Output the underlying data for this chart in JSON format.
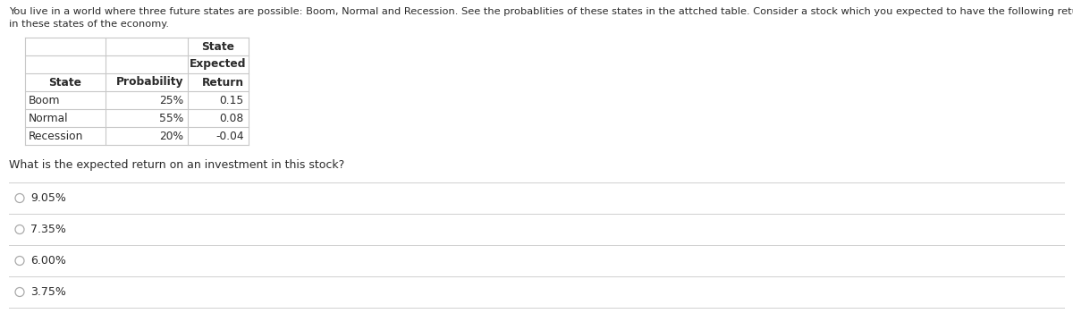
{
  "intro_line1": "You live in a world where three future states are possible: Boom, Normal and Recession. See the probablities of these states in the attched table. Consider a stock which you expected to have the following returns",
  "intro_line2": "in these states of the economy.",
  "table_header_row1_col2": "State",
  "table_header_row2_col2": "Expected",
  "table_col_headers": [
    "State",
    "Probability",
    "Return"
  ],
  "table_rows": [
    [
      "Boom",
      "25%",
      "0.15"
    ],
    [
      "Normal",
      "55%",
      "0.08"
    ],
    [
      "Recession",
      "20%",
      "-0.04"
    ]
  ],
  "question": "What is the expected return on an investment in this stock?",
  "options": [
    "9.05%",
    "7.35%",
    "6.00%",
    "3.75%"
  ],
  "bg_color": "#ffffff",
  "text_color": "#2b2b2b",
  "table_text_color": "#2b2b2b",
  "line_color": "#c8c8c8",
  "option_line_color": "#d0d0d0",
  "radio_color": "#aaaaaa",
  "font_size_intro": 8.2,
  "font_size_table": 8.8,
  "font_size_question": 9.0,
  "font_size_options": 9.0
}
